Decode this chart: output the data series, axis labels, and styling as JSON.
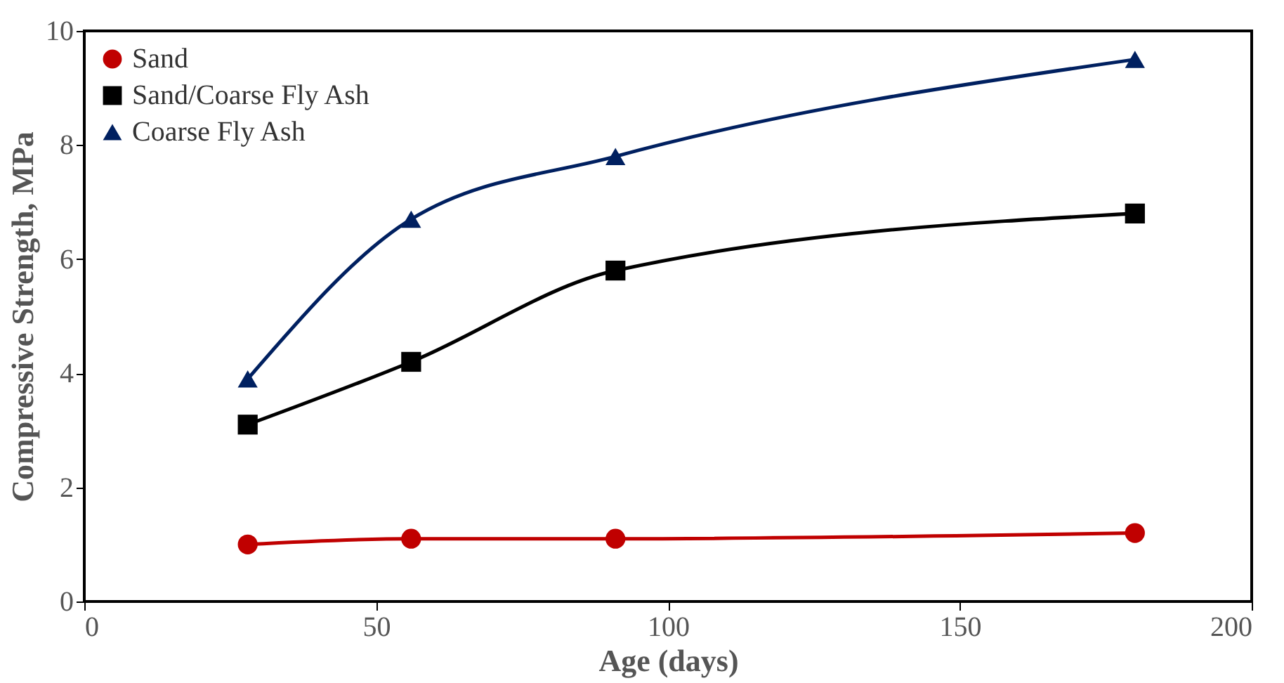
{
  "chart_data": {
    "type": "line",
    "xlabel": "Age (days)",
    "ylabel": "Compressive Strength, MPa",
    "x": [
      28,
      56,
      91,
      180
    ],
    "series": [
      {
        "name": "Sand",
        "color": "#c00000",
        "marker": "circle",
        "values": [
          1.0,
          1.1,
          1.1,
          1.2
        ]
      },
      {
        "name": "Sand/Coarse Fly Ash",
        "color": "#000000",
        "marker": "square",
        "values": [
          3.1,
          4.2,
          5.8,
          6.8
        ]
      },
      {
        "name": "Coarse Fly Ash",
        "color": "#002060",
        "marker": "triangle",
        "values": [
          3.9,
          6.7,
          7.8,
          9.5
        ]
      }
    ],
    "xlim": [
      0,
      200
    ],
    "xticks": [
      0,
      50,
      100,
      150,
      200
    ],
    "ylim": [
      0,
      10
    ],
    "yticks": [
      0,
      2,
      4,
      6,
      8,
      10
    ],
    "grid": false,
    "legend": "top left",
    "line_style": "solid"
  }
}
